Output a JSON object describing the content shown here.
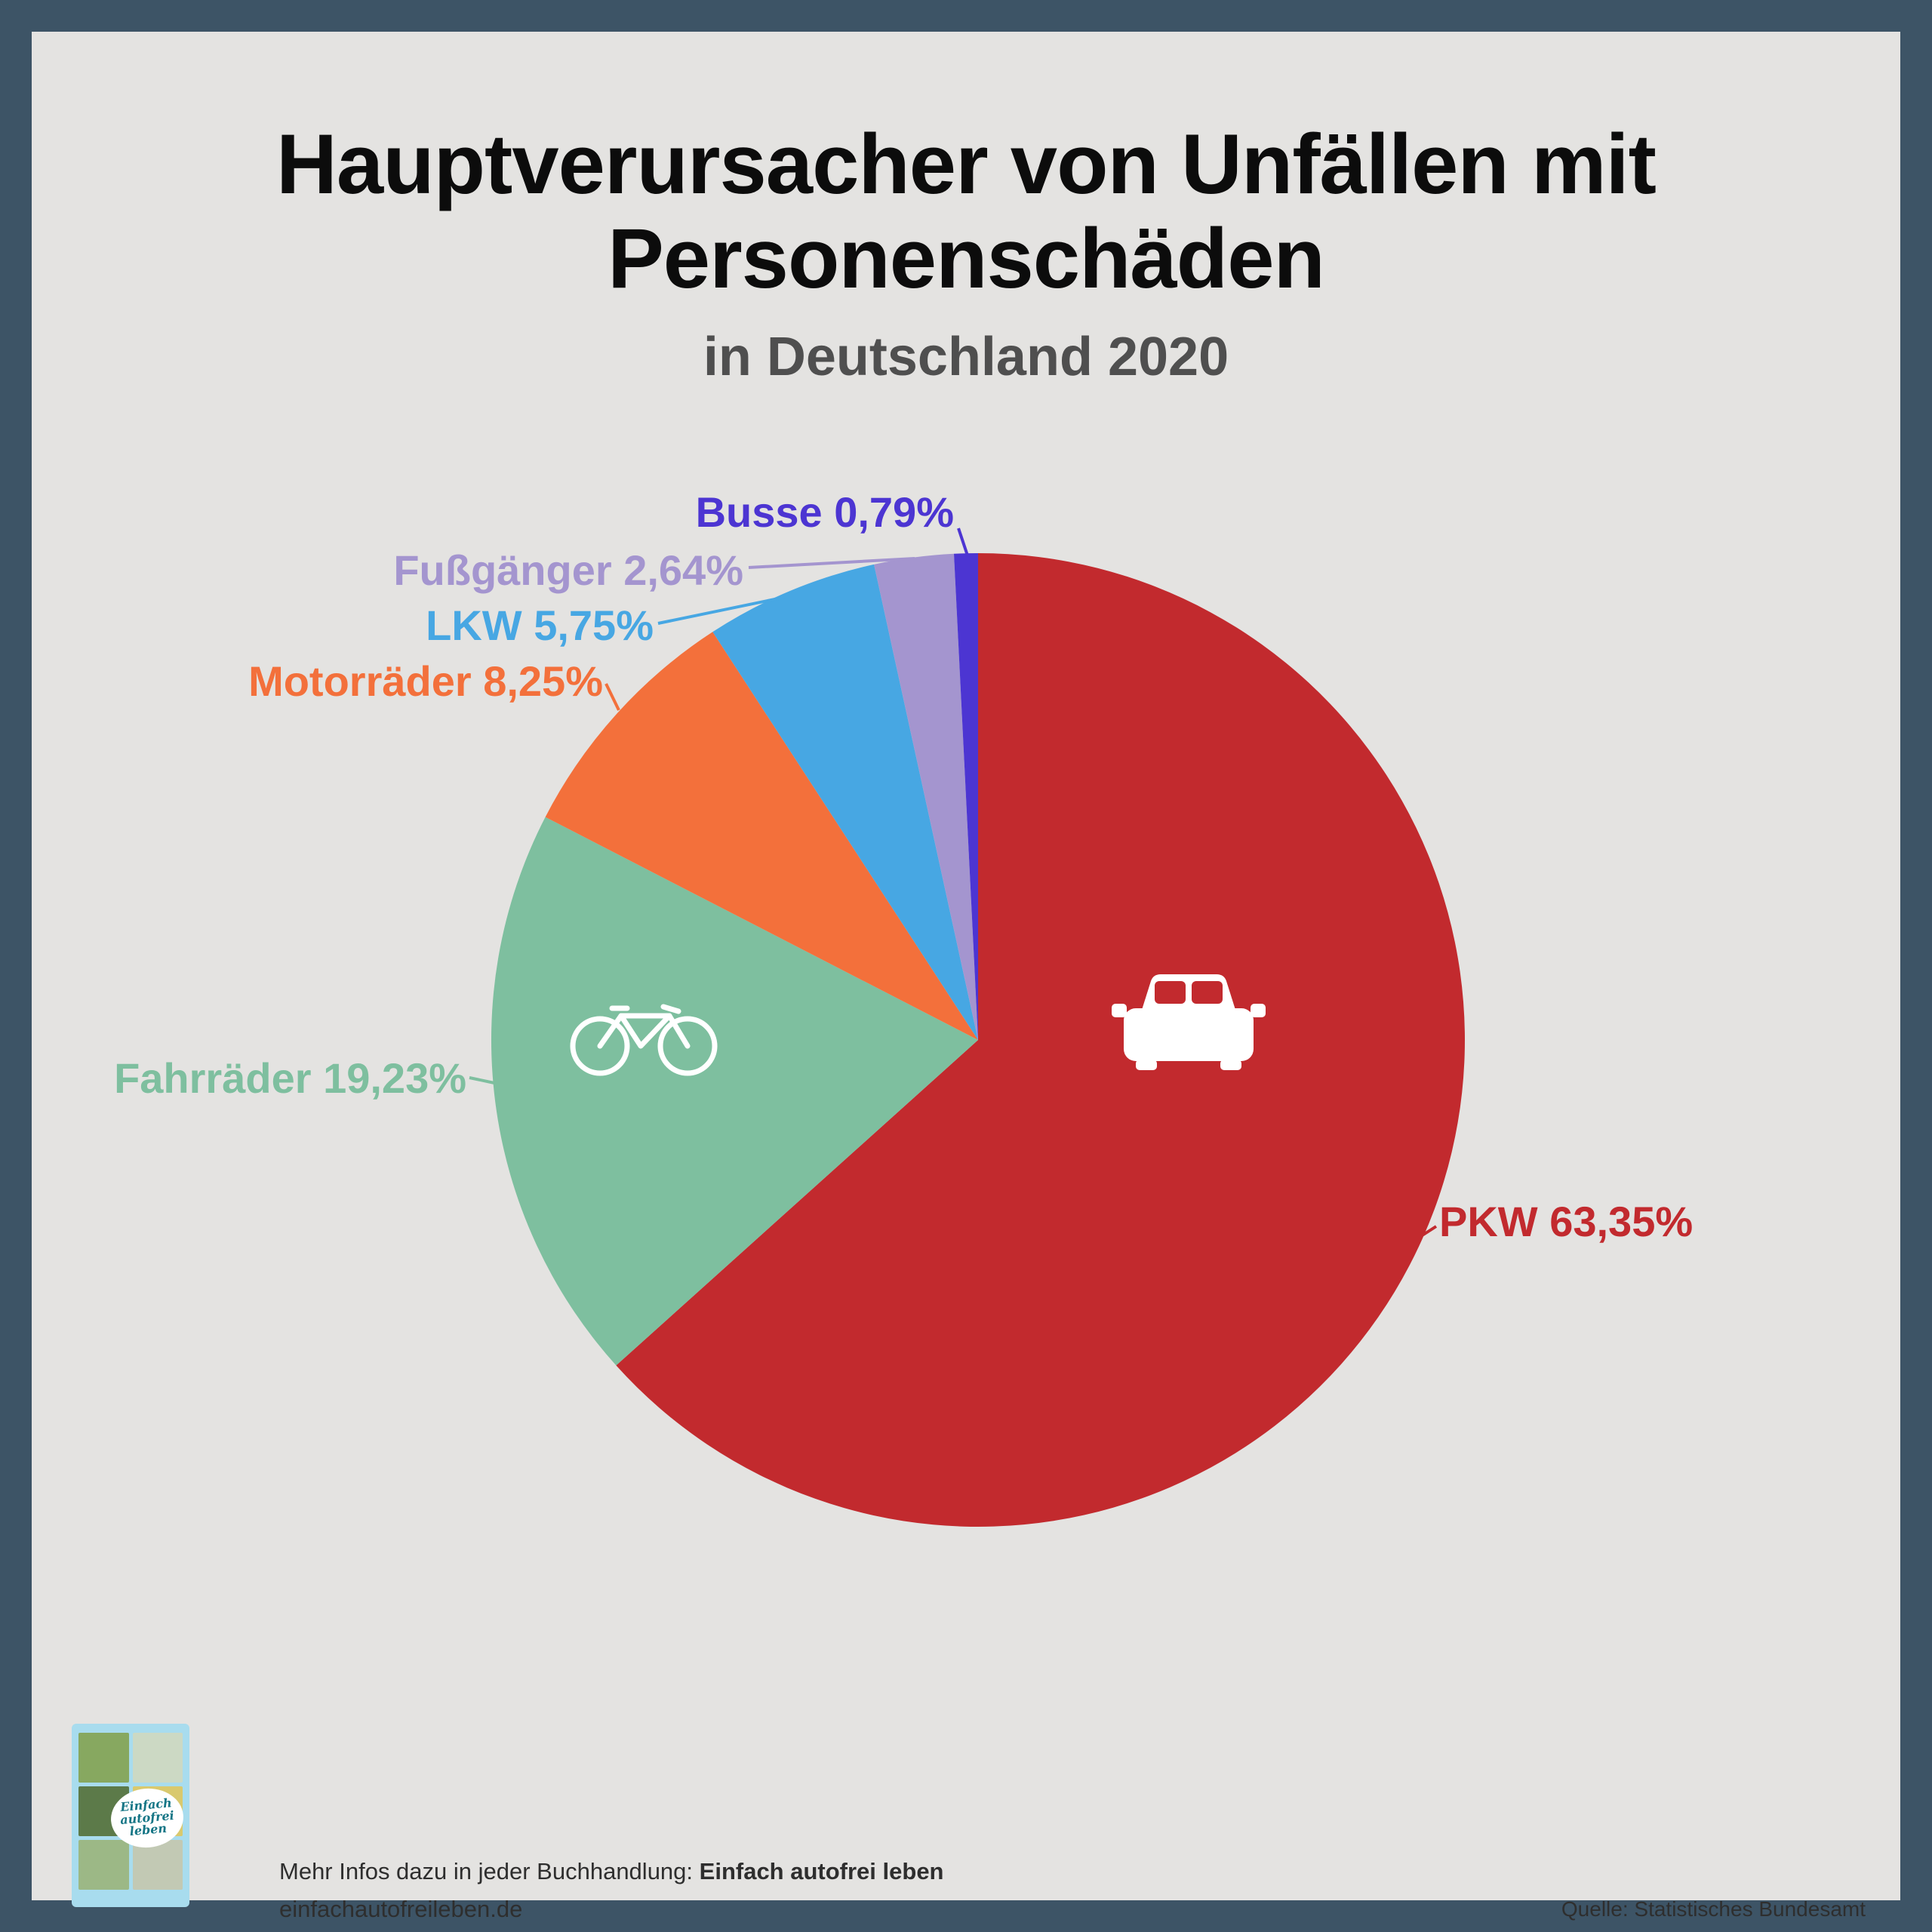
{
  "title": {
    "line1": "Hauptverursacher von Unfällen mit",
    "line2": "Personenschäden",
    "subtitle": "in Deutschland 2020"
  },
  "chart_data": {
    "type": "pie",
    "title": "Hauptverursacher von Unfällen mit Personenschäden in Deutschland 2020",
    "direction": "clockwise",
    "start_angle_deg": 0,
    "legend_position": "outside-labels",
    "slices": [
      {
        "label": "PKW",
        "value": 63.35,
        "display": "PKW 63,35%",
        "color": "#c22a2e",
        "icon": "car-icon"
      },
      {
        "label": "Fahrräder",
        "value": 19.23,
        "display": "Fahrräder 19,23%",
        "color": "#7ebf9f",
        "icon": "bicycle-icon"
      },
      {
        "label": "Motorräder",
        "value": 8.25,
        "display": "Motorräder 8,25%",
        "color": "#f3703b"
      },
      {
        "label": "LKW",
        "value": 5.75,
        "display": "LKW 5,75%",
        "color": "#47a7e3"
      },
      {
        "label": "Fußgänger",
        "value": 2.64,
        "display": "Fußgänger 2,64%",
        "color": "#a495cf"
      },
      {
        "label": "Busse",
        "value": 0.79,
        "display": "Busse 0,79%",
        "color": "#4c35d2"
      }
    ]
  },
  "footer": {
    "info_prefix": "Mehr Infos dazu in jeder Buchhandlung:",
    "info_bold": "Einfach autofrei leben",
    "website": "einfachautofreileben.de",
    "source": "Quelle: Statistisches Bundesamt",
    "book_cover_title": "Einfach autofrei leben"
  }
}
